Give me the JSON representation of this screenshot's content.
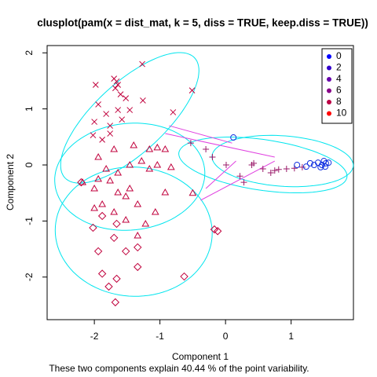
{
  "chart_data": {
    "type": "clusplot",
    "title": "clusplot(pam(x = dist_mat, k = 5, diss = TRUE, keep.diss = TRUE))",
    "xlabel": "Component 1",
    "ylabel": "Component 2",
    "subtitle": "These two components explain 40.44 % of the point variability.",
    "xlim": [
      -2.72,
      1.95
    ],
    "ylim": [
      -2.76,
      2.13
    ],
    "xticks": [
      -2,
      -1,
      0,
      1
    ],
    "yticks": [
      -2,
      -1,
      0,
      1,
      2
    ],
    "ellipse_color": "#00e5ee",
    "segment_color": "#e040e0",
    "legend": {
      "position": "top-right",
      "labels": [
        "0",
        "2",
        "4",
        "6",
        "8",
        "10"
      ],
      "colors": [
        "#0000ff",
        "#3300cc",
        "#6600aa",
        "#880088",
        "#bb0044",
        "#ff0000"
      ]
    },
    "series": [
      {
        "symbol": "x",
        "color": "#c0003c",
        "x": [
          -1.98,
          -1.94,
          -1.7,
          -1.66,
          -1.64,
          -1.68,
          -1.6,
          -1.52,
          -1.27,
          -2.0,
          -1.82,
          -1.76,
          -1.58,
          -1.46,
          -2.02,
          -1.88,
          -1.76,
          -1.26,
          -1.64,
          -0.51,
          -0.8
        ],
        "values": [
          1.43,
          1.08,
          1.54,
          1.49,
          1.43,
          1.37,
          1.26,
          1.19,
          1.8,
          0.77,
          0.91,
          0.7,
          0.81,
          0.98,
          0.53,
          0.45,
          0.56,
          1.15,
          0.98,
          1.33,
          0.94
        ]
      },
      {
        "symbol": "triangle",
        "color": "#c0003c",
        "x": [
          -2.18,
          -2.0,
          -1.82,
          -1.64,
          -1.46,
          -1.28,
          -1.04,
          -0.92,
          -1.16,
          -1.4,
          -1.7,
          -1.94,
          -1.88,
          -1.7,
          -1.52,
          -1.34,
          -0.92,
          -2.0,
          -1.52,
          -1.22,
          -1.07,
          -1.64,
          -1.76,
          -1.46,
          -1.16,
          -0.83,
          -1.94,
          -1.34,
          -1.04,
          -0.5
        ],
        "values": [
          -0.31,
          -0.42,
          -0.07,
          -0.14,
          0.0,
          0.07,
          0.0,
          0.28,
          0.28,
          0.35,
          0.28,
          0.14,
          -0.7,
          -0.84,
          -0.56,
          -0.7,
          -0.49,
          -0.77,
          -0.98,
          -1.05,
          -0.84,
          -0.49,
          -0.28,
          -0.42,
          -0.07,
          -0.04,
          -0.25,
          -1.26,
          0.31,
          -0.5
        ]
      },
      {
        "symbol": "diamond",
        "color": "#c0003c",
        "x": [
          -2.2,
          -2.02,
          -1.88,
          -1.66,
          -1.7,
          -1.94,
          -1.52,
          -1.34,
          -1.88,
          -1.66,
          -1.78,
          -0.63,
          -1.34,
          -1.68,
          -0.17,
          -0.12
        ],
        "values": [
          -0.31,
          -1.12,
          -0.91,
          -1.05,
          -1.3,
          -1.54,
          -1.54,
          -1.47,
          -1.94,
          -2.03,
          -2.17,
          -1.99,
          -1.82,
          -2.45,
          -1.15,
          -1.18
        ]
      },
      {
        "symbol": "plus",
        "color": "#9a1a6a",
        "x": [
          -0.53,
          -0.3,
          -0.2,
          0.01,
          0.22,
          0.28,
          0.4,
          0.57,
          0.69,
          0.81,
          0.93,
          1.05,
          1.17,
          0.43,
          0.75
        ],
        "values": [
          0.39,
          0.28,
          0.14,
          0.0,
          -0.2,
          -0.31,
          0.0,
          -0.07,
          -0.14,
          -0.08,
          -0.07,
          -0.06,
          -0.04,
          0.03,
          -0.1
        ]
      },
      {
        "symbol": "circle",
        "color": "#1030e0",
        "x": [
          0.12,
          1.09,
          1.23,
          1.35,
          1.41,
          1.47,
          1.5,
          1.53,
          1.57,
          1.52,
          1.45,
          1.29
        ],
        "values": [
          0.49,
          0.0,
          -0.03,
          0.0,
          0.04,
          0.0,
          0.07,
          0.03,
          0.04,
          -0.03,
          -0.04,
          0.03
        ]
      }
    ],
    "ellipses": [
      {
        "cx": -1.46,
        "cy": 0.84,
        "a": 1.46,
        "b": 0.58,
        "angle": 48.9
      },
      {
        "cx": -1.46,
        "cy": -0.21,
        "a": 1.15,
        "b": 0.95,
        "angle": 10
      },
      {
        "cx": -1.4,
        "cy": -1.19,
        "a": 1.2,
        "b": 1.15,
        "angle": -15
      },
      {
        "cx": 0.57,
        "cy": 0.0,
        "a": 1.3,
        "b": 0.45,
        "angle": -10
      },
      {
        "cx": 0.87,
        "cy": 0.07,
        "a": 1.08,
        "b": 0.45,
        "angle": -5
      }
    ],
    "segments": [
      [
        -0.86,
        0.7,
        0.1,
        0.39
      ],
      [
        -0.92,
        0.56,
        0.75,
        0.14
      ],
      [
        -0.38,
        -0.63,
        0.75,
        0.07
      ],
      [
        -0.3,
        -0.42,
        0.16,
        0.07
      ]
    ]
  }
}
